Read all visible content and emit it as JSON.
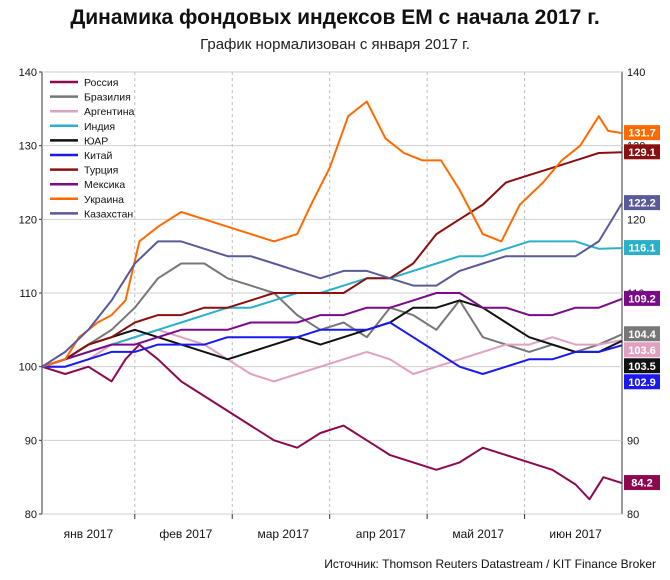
{
  "chart_data": {
    "type": "line",
    "title": "Динамика фондовых индексов EM с начала 2017 г.",
    "subtitle": "График нормализован с января 2017 г.",
    "source": "Источник: Thomson Reuters Datastream / KIT Finance Broker",
    "ylim": [
      80,
      140
    ],
    "yticks": [
      80,
      90,
      100,
      110,
      120,
      130,
      140
    ],
    "xlim": [
      0,
      125
    ],
    "month_labels": [
      {
        "label": "янв 2017",
        "x": 10
      },
      {
        "label": "фев 2017",
        "x": 31
      },
      {
        "label": "мар 2017",
        "x": 52
      },
      {
        "label": "апр 2017",
        "x": 73
      },
      {
        "label": "май 2017",
        "x": 94
      },
      {
        "label": "июн 2017",
        "x": 115
      }
    ],
    "month_dividers": [
      20,
      41,
      62,
      83,
      104
    ],
    "grid": true,
    "legend_position": "top-left",
    "series": [
      {
        "name": "Россия",
        "color": "#8b0a4f",
        "end_label": "84.2",
        "x": [
          0,
          5,
          10,
          15,
          18,
          21,
          25,
          30,
          35,
          40,
          45,
          50,
          55,
          60,
          65,
          70,
          75,
          80,
          85,
          90,
          95,
          100,
          105,
          110,
          115,
          118,
          121,
          125
        ],
        "y": [
          100,
          99,
          100,
          98,
          101,
          103,
          101,
          98,
          96,
          94,
          92,
          90,
          89,
          91,
          92,
          90,
          88,
          87,
          86,
          87,
          89,
          88,
          87,
          86,
          84,
          82,
          85,
          84.2
        ]
      },
      {
        "name": "Бразилия",
        "color": "#777777",
        "end_label": "104.4",
        "x": [
          0,
          5,
          10,
          15,
          20,
          25,
          30,
          35,
          40,
          45,
          50,
          55,
          60,
          65,
          70,
          75,
          80,
          85,
          90,
          95,
          100,
          105,
          110,
          115,
          120,
          125
        ],
        "y": [
          100,
          101,
          103,
          105,
          108,
          112,
          114,
          114,
          112,
          111,
          110,
          107,
          105,
          106,
          104,
          108,
          107,
          105,
          109,
          104,
          103,
          102,
          103,
          102,
          103,
          104.4
        ]
      },
      {
        "name": "Аргентина",
        "color": "#e0a0c0",
        "end_label": "103.6",
        "x": [
          0,
          5,
          10,
          15,
          20,
          25,
          30,
          35,
          40,
          45,
          50,
          55,
          60,
          65,
          70,
          75,
          80,
          85,
          90,
          95,
          100,
          105,
          110,
          115,
          120,
          125
        ],
        "y": [
          100,
          100,
          101,
          103,
          104,
          105,
          104,
          103,
          101,
          99,
          98,
          99,
          100,
          101,
          102,
          101,
          99,
          100,
          101,
          102,
          103,
          103,
          104,
          103,
          103,
          103.6
        ]
      },
      {
        "name": "Индия",
        "color": "#2ab0c8",
        "end_label": "116.1",
        "x": [
          0,
          5,
          10,
          15,
          20,
          25,
          30,
          35,
          40,
          45,
          50,
          55,
          60,
          65,
          70,
          75,
          80,
          85,
          90,
          95,
          100,
          105,
          110,
          115,
          120,
          125
        ],
        "y": [
          100,
          101,
          102,
          103,
          104,
          105,
          106,
          107,
          108,
          108,
          109,
          110,
          110,
          111,
          112,
          112,
          113,
          114,
          115,
          115,
          116,
          117,
          117,
          117,
          116,
          116.1
        ]
      },
      {
        "name": "ЮАР",
        "color": "#111111",
        "end_label": "103.5",
        "x": [
          0,
          5,
          10,
          15,
          20,
          25,
          30,
          35,
          40,
          45,
          50,
          55,
          60,
          65,
          70,
          75,
          80,
          85,
          90,
          95,
          100,
          105,
          110,
          115,
          120,
          125
        ],
        "y": [
          100,
          101,
          103,
          104,
          105,
          104,
          103,
          102,
          101,
          102,
          103,
          104,
          103,
          104,
          105,
          106,
          108,
          108,
          109,
          108,
          106,
          104,
          103,
          102,
          102,
          103.5
        ]
      },
      {
        "name": "Китай",
        "color": "#1a1aee",
        "end_label": "102.9",
        "x": [
          0,
          5,
          10,
          15,
          20,
          25,
          30,
          35,
          40,
          45,
          50,
          55,
          60,
          65,
          70,
          75,
          80,
          85,
          90,
          95,
          100,
          105,
          110,
          115,
          120,
          125
        ],
        "y": [
          100,
          100,
          101,
          102,
          102,
          103,
          103,
          103,
          104,
          104,
          104,
          104,
          105,
          105,
          105,
          106,
          104,
          102,
          100,
          99,
          100,
          101,
          101,
          102,
          102,
          102.9
        ]
      },
      {
        "name": "Турция",
        "color": "#8a1010",
        "end_label": "129.1",
        "x": [
          0,
          5,
          10,
          15,
          20,
          25,
          30,
          35,
          40,
          45,
          50,
          55,
          60,
          65,
          70,
          75,
          80,
          85,
          90,
          95,
          100,
          105,
          110,
          115,
          120,
          125
        ],
        "y": [
          100,
          101,
          103,
          104,
          106,
          107,
          107,
          108,
          108,
          109,
          110,
          110,
          110,
          110,
          112,
          112,
          114,
          118,
          120,
          122,
          125,
          126,
          127,
          128,
          129,
          129.1
        ]
      },
      {
        "name": "Мексика",
        "color": "#7a0a8a",
        "end_label": "109.2",
        "x": [
          0,
          5,
          10,
          15,
          20,
          25,
          30,
          35,
          40,
          45,
          50,
          55,
          60,
          65,
          70,
          75,
          80,
          85,
          90,
          95,
          100,
          105,
          110,
          115,
          120,
          125
        ],
        "y": [
          100,
          101,
          102,
          103,
          103,
          104,
          105,
          105,
          105,
          106,
          106,
          106,
          107,
          107,
          108,
          108,
          109,
          110,
          110,
          108,
          108,
          107,
          107,
          108,
          108,
          109.2
        ]
      },
      {
        "name": "Украина",
        "color": "#ff6a00",
        "end_label": "131.7",
        "x": [
          0,
          5,
          8,
          12,
          15,
          18,
          21,
          25,
          30,
          35,
          40,
          45,
          50,
          55,
          58,
          62,
          66,
          70,
          74,
          78,
          82,
          86,
          90,
          95,
          99,
          103,
          108,
          112,
          116,
          120,
          122,
          125
        ],
        "y": [
          100,
          101,
          104,
          106,
          107,
          109,
          117,
          119,
          121,
          120,
          119,
          118,
          117,
          118,
          122,
          127,
          134,
          136,
          131,
          129,
          128,
          128,
          124,
          118,
          117,
          122,
          125,
          128,
          130,
          134,
          132,
          131.7
        ]
      },
      {
        "name": "Казахстан",
        "color": "#5a5a9a",
        "end_label": "122.2",
        "x": [
          0,
          5,
          10,
          15,
          20,
          25,
          30,
          35,
          40,
          45,
          50,
          55,
          60,
          65,
          70,
          75,
          80,
          85,
          90,
          95,
          100,
          105,
          110,
          115,
          120,
          125
        ],
        "y": [
          100,
          102,
          105,
          109,
          114,
          117,
          117,
          116,
          115,
          115,
          114,
          113,
          112,
          113,
          113,
          112,
          111,
          111,
          113,
          114,
          115,
          115,
          115,
          115,
          117,
          122.2
        ]
      }
    ]
  }
}
